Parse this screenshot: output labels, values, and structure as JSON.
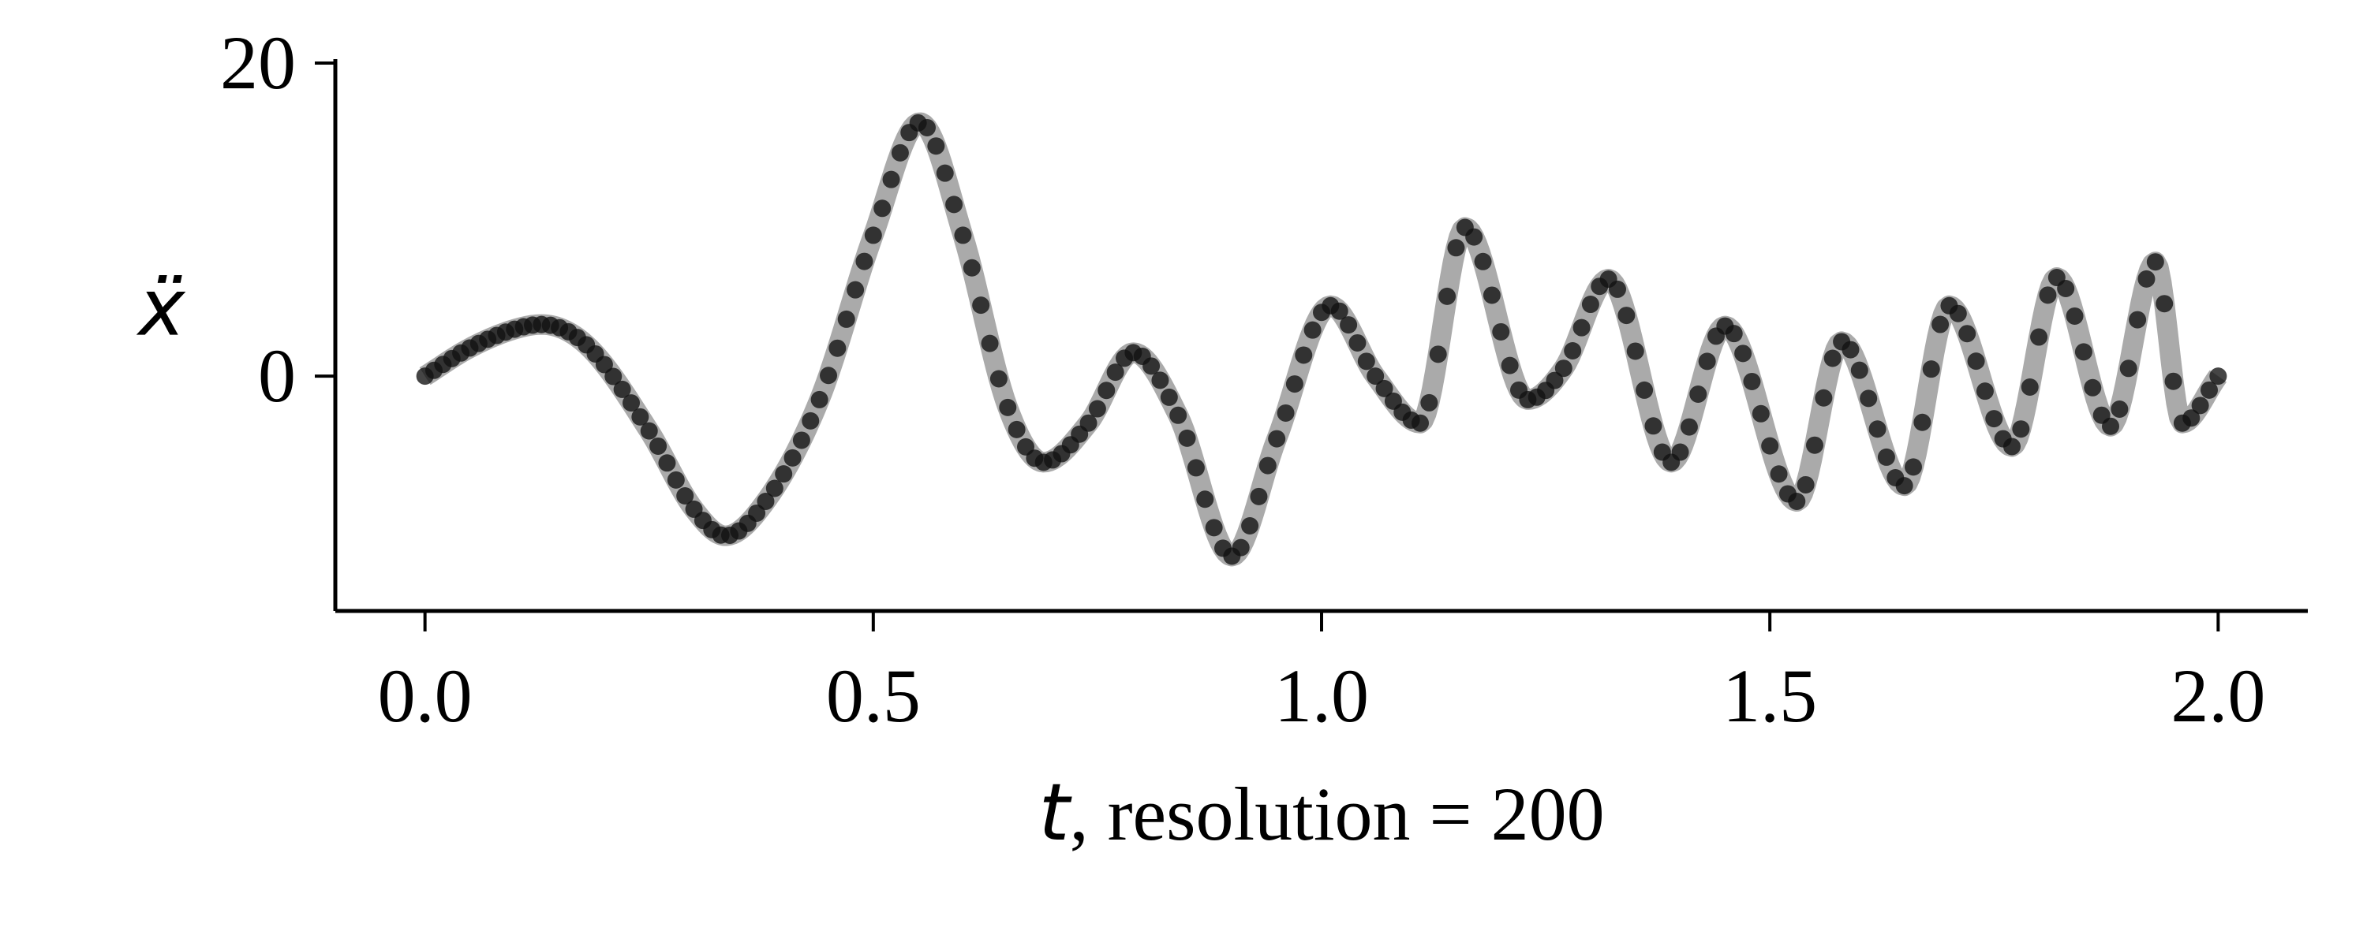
{
  "chart_data": {
    "type": "line",
    "xlabel_var": "t",
    "xlabel_rest": ", resolution = 200",
    "ylabel_var": "ẍ",
    "xlim": [
      -0.1,
      2.1
    ],
    "ylim": [
      -15,
      20
    ],
    "x_ticks": [
      0.0,
      0.5,
      1.0,
      1.5,
      2.0
    ],
    "x_tick_labels": [
      "0.0",
      "0.5",
      "1.0",
      "1.5",
      "2.0"
    ],
    "y_ticks": [
      0,
      20
    ],
    "y_tick_labels": [
      "0",
      "20"
    ],
    "grid": false,
    "legend": "none",
    "series": [
      {
        "style": "thick-line",
        "color": "#aaaaaa",
        "x": [
          0.0,
          0.05,
          0.1,
          0.13,
          0.18,
          0.25,
          0.3,
          0.335,
          0.38,
          0.44,
          0.5,
          0.552,
          0.6,
          0.65,
          0.69,
          0.74,
          0.79,
          0.84,
          0.9,
          0.95,
          1.01,
          1.06,
          1.11,
          1.16,
          1.23,
          1.27,
          1.32,
          1.39,
          1.45,
          1.53,
          1.58,
          1.65,
          1.7,
          1.77,
          1.82,
          1.88,
          1.93,
          1.96,
          2.0
        ],
        "values": [
          0.0,
          1.8,
          3.0,
          3.3,
          2.0,
          -3.5,
          -8.5,
          -10.2,
          -8.0,
          -1.5,
          9.0,
          16.2,
          9.0,
          -2.0,
          -5.5,
          -3.0,
          1.5,
          -2.5,
          -11.5,
          -4.0,
          4.5,
          0.0,
          -3.0,
          9.5,
          -1.5,
          0.5,
          6.2,
          -5.5,
          3.2,
          -8.0,
          2.2,
          -7.0,
          4.5,
          -4.5,
          6.3,
          -3.2,
          7.3,
          -3.0,
          0.0
        ]
      },
      {
        "style": "markers",
        "color": "#111111",
        "x": [
          0.0,
          0.05,
          0.1,
          0.13,
          0.18,
          0.25,
          0.3,
          0.335,
          0.38,
          0.44,
          0.5,
          0.552,
          0.6,
          0.65,
          0.69,
          0.74,
          0.79,
          0.84,
          0.9,
          0.95,
          1.01,
          1.06,
          1.11,
          1.16,
          1.23,
          1.27,
          1.32,
          1.39,
          1.45,
          1.53,
          1.58,
          1.65,
          1.7,
          1.77,
          1.82,
          1.88,
          1.93,
          1.96,
          2.0
        ],
        "values": [
          0.0,
          1.8,
          3.0,
          3.3,
          2.0,
          -3.5,
          -8.5,
          -10.2,
          -8.0,
          -1.5,
          9.0,
          16.2,
          9.0,
          -2.0,
          -5.5,
          -3.0,
          1.5,
          -2.5,
          -11.5,
          -4.0,
          4.5,
          0.0,
          -3.0,
          9.5,
          -1.5,
          0.5,
          6.2,
          -5.5,
          3.2,
          -8.0,
          2.2,
          -7.0,
          4.5,
          -4.5,
          6.3,
          -3.2,
          7.3,
          -3.0,
          0.0
        ],
        "resolution": 200
      }
    ]
  }
}
